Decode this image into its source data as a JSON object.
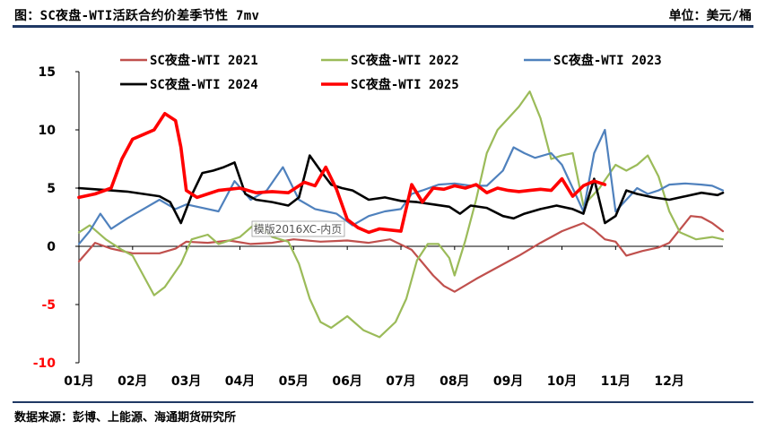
{
  "header": {
    "title": "图：SC夜盘-WTI活跃合约价差季节性 7mv",
    "unit": "单位：美元/桶"
  },
  "footer": {
    "source": "数据来源：彭博、上能源、海通期货研究所"
  },
  "watermark": {
    "text": "模版2016XC-内页"
  },
  "colors": {
    "rule": "#1f3864",
    "negative_tick": "#ff0000"
  },
  "chart_data": {
    "type": "line",
    "title": "SC夜盘-WTI活跃合约价差季节性 7mv",
    "xlabel": "",
    "ylabel": "美元/桶",
    "ylim": [
      -10,
      15
    ],
    "yticks": [
      "15",
      "10",
      "5",
      "0",
      "-5",
      "-10"
    ],
    "ytick_values": [
      15,
      10,
      5,
      0,
      -5,
      -10
    ],
    "categories": [
      "01月",
      "02月",
      "03月",
      "04月",
      "05月",
      "06月",
      "07月",
      "08月",
      "09月",
      "10月",
      "11月",
      "12月"
    ],
    "x_unit": "month position (0 = start of Jan, 12 = end of Dec)",
    "legend": "top",
    "series": [
      {
        "name": "SC夜盘-WTI 2021",
        "color": "#c0504d",
        "width": 2.2,
        "x": [
          0.0,
          0.3,
          0.6,
          1.0,
          1.5,
          1.8,
          2.0,
          2.4,
          2.8,
          3.2,
          3.6,
          4.0,
          4.5,
          5.0,
          5.4,
          5.8,
          6.2,
          6.6,
          6.8,
          7.0,
          7.4,
          7.8,
          8.2,
          8.6,
          9.0,
          9.4,
          9.6,
          9.8,
          10.0,
          10.2,
          10.5,
          10.8,
          11.0,
          11.4,
          11.6,
          11.8,
          12.0
        ],
        "y": [
          -1.3,
          0.3,
          -0.2,
          -0.6,
          -0.6,
          -0.2,
          0.4,
          0.3,
          0.5,
          0.2,
          0.3,
          0.6,
          0.4,
          0.5,
          0.3,
          0.6,
          -0.3,
          -2.5,
          -3.4,
          -3.9,
          -2.8,
          -1.8,
          -0.8,
          0.3,
          1.3,
          2.0,
          1.4,
          0.6,
          0.4,
          -0.8,
          -0.4,
          -0.1,
          0.3,
          2.6,
          2.5,
          2.0,
          1.3
        ]
      },
      {
        "name": "SC夜盘-WTI 2022",
        "color": "#9bbb59",
        "width": 2.2,
        "x": [
          0.0,
          0.2,
          0.5,
          0.8,
          1.0,
          1.2,
          1.4,
          1.6,
          1.9,
          2.1,
          2.4,
          2.6,
          2.8,
          3.0,
          3.3,
          3.6,
          3.9,
          4.1,
          4.3,
          4.5,
          4.7,
          5.0,
          5.3,
          5.6,
          5.9,
          6.1,
          6.3,
          6.5,
          6.7,
          6.9,
          7.0,
          7.2,
          7.4,
          7.6,
          7.8,
          8.0,
          8.2,
          8.4,
          8.6,
          8.8,
          9.0,
          9.2,
          9.4,
          9.7,
          10.0,
          10.2,
          10.4,
          10.6,
          10.8,
          11.0,
          11.2,
          11.5,
          11.8,
          12.0
        ],
        "y": [
          1.2,
          1.8,
          0.6,
          -0.3,
          -0.8,
          -2.5,
          -4.2,
          -3.5,
          -1.5,
          0.6,
          1.0,
          0.2,
          0.5,
          0.8,
          2.0,
          0.8,
          0.4,
          -1.5,
          -4.5,
          -6.5,
          -7.0,
          -6.0,
          -7.2,
          -7.8,
          -6.5,
          -4.5,
          -1.2,
          0.2,
          0.2,
          -1.0,
          -2.5,
          0.5,
          4.0,
          8.0,
          10.0,
          11.0,
          12.0,
          13.3,
          11.0,
          7.5,
          7.8,
          8.0,
          3.5,
          5.0,
          7.0,
          6.5,
          7.0,
          7.8,
          6.0,
          3.0,
          1.2,
          0.6,
          0.8,
          0.6
        ]
      },
      {
        "name": "SC夜盘-WTI 2023",
        "color": "#4f81bd",
        "width": 2.2,
        "x": [
          0.0,
          0.2,
          0.4,
          0.6,
          0.9,
          1.2,
          1.5,
          1.8,
          2.0,
          2.3,
          2.6,
          2.9,
          3.2,
          3.5,
          3.8,
          4.1,
          4.4,
          4.6,
          4.8,
          5.1,
          5.4,
          5.7,
          6.0,
          6.2,
          6.4,
          6.7,
          7.0,
          7.3,
          7.6,
          7.9,
          8.1,
          8.3,
          8.5,
          8.8,
          9.0,
          9.2,
          9.4,
          9.6,
          9.8,
          10.0,
          10.2,
          10.4,
          10.6,
          10.8,
          11.0,
          11.3,
          11.6,
          11.8,
          12.0
        ],
        "y": [
          0.2,
          1.3,
          2.8,
          1.5,
          2.4,
          3.2,
          4.0,
          3.2,
          3.6,
          3.3,
          3.0,
          5.6,
          4.0,
          4.8,
          6.8,
          4.0,
          3.2,
          3.0,
          2.8,
          1.8,
          2.6,
          3.0,
          3.2,
          4.5,
          4.8,
          5.3,
          5.4,
          5.2,
          5.2,
          6.5,
          8.5,
          8.0,
          7.6,
          8.0,
          7.0,
          5.0,
          3.0,
          8.0,
          10.0,
          3.0,
          4.0,
          5.0,
          4.5,
          4.8,
          5.3,
          5.4,
          5.3,
          5.2,
          4.8
        ]
      },
      {
        "name": "SC夜盘-WTI 2024",
        "color": "#000000",
        "width": 2.6,
        "x": [
          0.0,
          0.3,
          0.6,
          0.9,
          1.2,
          1.5,
          1.7,
          1.9,
          2.1,
          2.3,
          2.5,
          2.7,
          2.9,
          3.1,
          3.3,
          3.6,
          3.9,
          4.1,
          4.3,
          4.5,
          4.7,
          4.9,
          5.1,
          5.4,
          5.7,
          6.0,
          6.3,
          6.6,
          6.9,
          7.1,
          7.3,
          7.6,
          7.9,
          8.1,
          8.3,
          8.6,
          8.9,
          9.2,
          9.4,
          9.6,
          9.8,
          10.0,
          10.2,
          10.4,
          10.7,
          11.0,
          11.3,
          11.6,
          11.9,
          12.0
        ],
        "y": [
          5.0,
          4.9,
          4.8,
          4.7,
          4.5,
          4.3,
          3.8,
          2.0,
          4.4,
          6.3,
          6.5,
          6.8,
          7.2,
          4.5,
          4.0,
          3.8,
          3.5,
          4.2,
          7.8,
          6.5,
          5.3,
          5.0,
          4.8,
          4.0,
          4.2,
          3.9,
          3.8,
          3.6,
          3.4,
          2.8,
          3.5,
          3.3,
          2.6,
          2.4,
          2.8,
          3.2,
          3.5,
          3.2,
          2.8,
          5.8,
          2.0,
          2.6,
          4.8,
          4.5,
          4.2,
          4.0,
          4.3,
          4.6,
          4.4,
          4.6
        ]
      },
      {
        "name": "SC夜盘-WTI 2025",
        "color": "#ff0000",
        "width": 3.6,
        "x": [
          0.0,
          0.3,
          0.6,
          0.8,
          1.0,
          1.2,
          1.4,
          1.6,
          1.8,
          1.9,
          2.0,
          2.2,
          2.4,
          2.6,
          2.8,
          3.0,
          3.3,
          3.6,
          3.9,
          4.2,
          4.4,
          4.6,
          4.8,
          5.0,
          5.2,
          5.4,
          5.6,
          5.8,
          6.0,
          6.2,
          6.4,
          6.6,
          6.8,
          7.0,
          7.2,
          7.4,
          7.6,
          7.8,
          8.0,
          8.2,
          8.4,
          8.6,
          8.8,
          9.0,
          9.2,
          9.4,
          9.6,
          9.8
        ],
        "y": [
          4.2,
          4.5,
          5.0,
          7.5,
          9.2,
          9.6,
          10.0,
          11.4,
          10.8,
          8.5,
          4.8,
          4.2,
          4.5,
          4.8,
          4.9,
          5.0,
          4.6,
          4.7,
          4.6,
          5.5,
          5.2,
          6.8,
          4.9,
          2.3,
          1.6,
          1.2,
          1.5,
          1.4,
          1.3,
          5.3,
          3.8,
          5.0,
          4.9,
          5.2,
          5.0,
          5.3,
          4.6,
          5.0,
          4.8,
          4.7,
          4.8,
          4.9,
          4.8,
          5.8,
          4.3,
          5.2,
          5.6,
          5.3
        ]
      }
    ]
  }
}
